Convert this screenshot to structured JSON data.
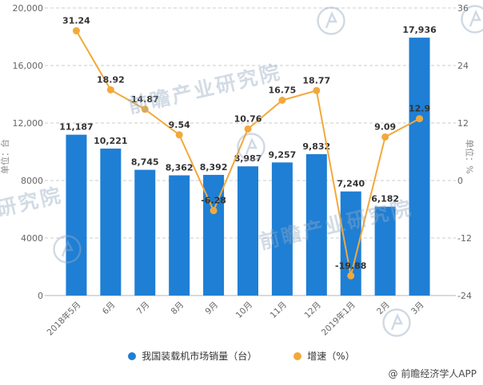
{
  "chart_data": {
    "type": "combo",
    "categories": [
      "2018年5月",
      "6月",
      "7月",
      "8月",
      "9月",
      "10月",
      "11月",
      "12月",
      "2019年1月",
      "2月",
      "3月"
    ],
    "series": [
      {
        "name": "我国装载机市场销量（台）",
        "type": "bar",
        "axis": "left",
        "color": "#1E7FD5",
        "values": [
          11187,
          10221,
          8745,
          8362,
          8392,
          8987,
          9257,
          9832,
          7240,
          6182,
          17936
        ],
        "labels": [
          "11,187",
          "10,221",
          "8,745",
          "8,362",
          "8,392",
          "8,987",
          "9,257",
          "9,832",
          "7,240",
          "6,182",
          "17,936"
        ]
      },
      {
        "name": "增速（%）",
        "type": "line",
        "axis": "right",
        "color": "#F2A93B",
        "values": [
          31.24,
          18.92,
          14.87,
          9.54,
          -6.28,
          10.76,
          16.75,
          18.77,
          -19.88,
          9.09,
          12.9
        ],
        "labels": [
          "31.24",
          "18.92",
          "14.87",
          "9.54",
          "-6.28",
          "10.76",
          "16.75",
          "18.77",
          "-19.88",
          "9.09",
          "12.9"
        ]
      }
    ],
    "left_axis": {
      "label": "单位：台",
      "min": 0,
      "max": 20000,
      "ticks": [
        0,
        4000,
        8000,
        12000,
        16000,
        20000
      ],
      "tick_labels": [
        "0",
        "4000",
        "8000",
        "12,000",
        "16,000",
        "20,000"
      ]
    },
    "right_axis": {
      "label": "单位：%",
      "min": -24,
      "max": 36,
      "ticks": [
        -24,
        -12,
        0,
        12,
        24,
        36
      ],
      "tick_labels": [
        "-24",
        "-12",
        "0",
        "12",
        "24",
        "36"
      ]
    },
    "grid": "dashed-horizontal",
    "legend_position": "bottom"
  },
  "legend": [
    {
      "label": "我国装载机市场销量（台）",
      "color": "#1E7FD5"
    },
    {
      "label": "增速（%）",
      "color": "#F2A93B"
    }
  ],
  "watermark": {
    "text": "前瞻产业研究院",
    "color": "#94AAC0"
  },
  "credit": "@ 前瞻经济学人APP",
  "colors": {
    "bar": "#1E7FD5",
    "line": "#F2A93B",
    "value_label": "#333333",
    "axis_text": "#666666",
    "gridline": "#cccccc"
  }
}
